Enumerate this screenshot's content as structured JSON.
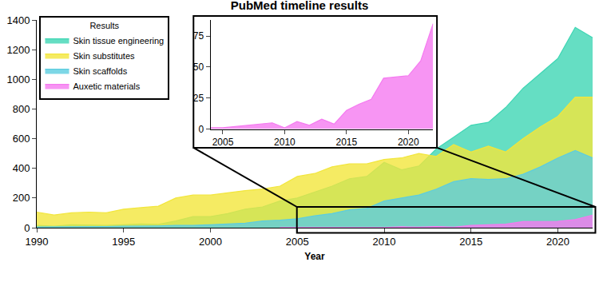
{
  "chart_data": [
    {
      "type": "area",
      "title": "PubMed timeline results",
      "x_label": "Year",
      "legend_title": "Results",
      "legend": "upper left",
      "grid": false,
      "x": [
        1990,
        1991,
        1992,
        1993,
        1994,
        1995,
        1996,
        1997,
        1998,
        1999,
        2000,
        2001,
        2002,
        2003,
        2004,
        2005,
        2006,
        2007,
        2008,
        2009,
        2010,
        2011,
        2012,
        2013,
        2014,
        2015,
        2016,
        2017,
        2018,
        2019,
        2020,
        2021,
        2022
      ],
      "series": [
        {
          "name": "Skin tissue engineering",
          "color": "#3fd6b4",
          "values": [
            15,
            10,
            20,
            18,
            15,
            20,
            25,
            22,
            45,
            75,
            75,
            95,
            125,
            140,
            180,
            200,
            240,
            280,
            330,
            345,
            440,
            390,
            415,
            530,
            610,
            690,
            710,
            810,
            940,
            1040,
            1140,
            1350,
            1280
          ]
        },
        {
          "name": "Skin substitutes",
          "color": "#f2e63c",
          "values": [
            105,
            85,
            100,
            105,
            100,
            125,
            135,
            145,
            200,
            220,
            220,
            235,
            250,
            260,
            280,
            345,
            365,
            410,
            430,
            430,
            460,
            470,
            500,
            480,
            560,
            510,
            550,
            510,
            600,
            680,
            750,
            880,
            880
          ]
        },
        {
          "name": "Skin scaffolds",
          "color": "#5ccde0",
          "values": [
            5,
            5,
            8,
            8,
            8,
            10,
            10,
            12,
            15,
            15,
            20,
            25,
            30,
            45,
            50,
            60,
            80,
            95,
            120,
            130,
            180,
            200,
            220,
            260,
            310,
            330,
            325,
            330,
            360,
            410,
            470,
            520,
            470
          ]
        },
        {
          "name": "Auxetic materials",
          "color": "#f57af0",
          "values": [
            null,
            null,
            null,
            null,
            null,
            null,
            null,
            null,
            null,
            null,
            null,
            null,
            null,
            null,
            1,
            1,
            2,
            3,
            4,
            5,
            1,
            6,
            3,
            8,
            4,
            15,
            20,
            24,
            41,
            42,
            43,
            55,
            85
          ]
        }
      ],
      "xlim": [
        1990,
        2022
      ],
      "xticks": [
        1990,
        1995,
        2000,
        2005,
        2010,
        2015,
        2020
      ],
      "ylim": [
        0,
        1400
      ],
      "yticks": [
        0,
        200,
        400,
        600,
        800,
        1000,
        1200,
        1400
      ]
    },
    {
      "type": "area",
      "grid": false,
      "x": [
        2004,
        2005,
        2006,
        2007,
        2008,
        2009,
        2010,
        2011,
        2012,
        2013,
        2014,
        2015,
        2016,
        2017,
        2018,
        2019,
        2020,
        2021,
        2022
      ],
      "values": [
        1,
        1,
        2,
        3,
        4,
        5,
        1,
        6,
        3,
        8,
        4,
        15,
        20,
        24,
        41,
        42,
        43,
        55,
        85
      ],
      "color": "#f57af0",
      "xlim": [
        2004,
        2022
      ],
      "xticks": [
        2005,
        2010,
        2015,
        2020
      ],
      "ylim": [
        0,
        88
      ],
      "yticks": [
        0,
        25,
        50,
        75
      ]
    }
  ]
}
